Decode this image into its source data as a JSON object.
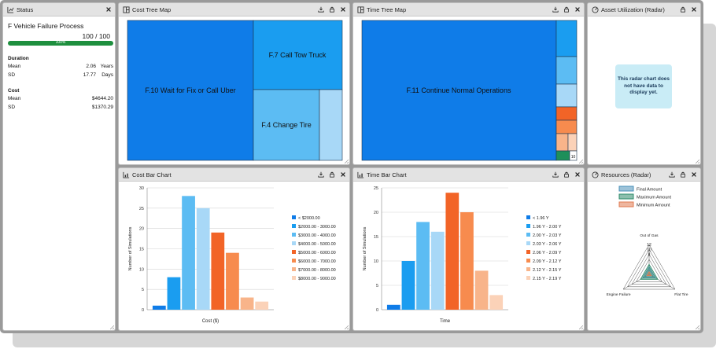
{
  "status": {
    "panel_title": "Status",
    "process_name": "F Vehicle Failure Process",
    "count": "100 / 100",
    "progress": 1.0,
    "progress_label": "100%",
    "duration": {
      "heading": "Duration",
      "mean_label": "Mean",
      "mean_value": "2.06",
      "mean_unit": "Years",
      "sd_label": "SD",
      "sd_value": "17.77",
      "sd_unit": "Days"
    },
    "cost": {
      "heading": "Cost",
      "mean_label": "Mean",
      "mean_value": "$4644.20",
      "sd_label": "SD",
      "sd_value": "$1370.29"
    }
  },
  "cost_tree": {
    "panel_title": "Cost Tree Map",
    "items": [
      {
        "label": "F.10 Wait for Fix or Call Uber",
        "color": "#0f7ce8"
      },
      {
        "label": "F.7 Call Tow Truck",
        "color": "#1a9df0"
      },
      {
        "label": "F.4 Change Tire",
        "color": "#5cbcf3"
      },
      {
        "label": "",
        "color": "#a8d8f7"
      }
    ]
  },
  "time_tree": {
    "panel_title": "Time Tree Map",
    "items": [
      {
        "label": "F.11 Continue Normal Operations",
        "color": "#0f7ce8"
      },
      {
        "label": "",
        "color": "#1a9df0"
      },
      {
        "label": "",
        "color": "#5cbcf3"
      },
      {
        "label": "",
        "color": "#a8d8f7"
      },
      {
        "label": "",
        "color": "#f26427"
      },
      {
        "label": "",
        "color": "#f78b4e"
      },
      {
        "label": "",
        "color": "#f8b48a"
      },
      {
        "label": "",
        "color": "#fbd2b8"
      },
      {
        "label": "",
        "color": "#1e8f5a"
      },
      {
        "label": "10",
        "color": "#ffffff"
      }
    ]
  },
  "asset_radar": {
    "panel_title": "Asset Utilization (Radar)",
    "message": "This radar chart does not have data to display yet."
  },
  "cost_bar": {
    "panel_title": "Cost Bar Chart",
    "chart_data": {
      "type": "bar",
      "categories": [
        "< $2000.00",
        "$2000.00 - 3000.00",
        "$3000.00 - 4000.00",
        "$4000.00 - 5000.00",
        "$5000.00 - 6000.00",
        "$6000.00 - 7000.00",
        "$7000.00 - 8000.00",
        "$8000.00 - 9000.00"
      ],
      "values": [
        1,
        8,
        28,
        25,
        19,
        14,
        3,
        2
      ],
      "colors": [
        "#0f7ce8",
        "#1a9df0",
        "#5cbcf3",
        "#a8d8f7",
        "#f26427",
        "#f78b4e",
        "#f8b48a",
        "#fbd2b8"
      ],
      "xlabel": "Cost ($)",
      "ylabel": "Number of Simulations",
      "ylim": [
        0,
        30
      ],
      "yticks": [
        0,
        5,
        10,
        15,
        20,
        25,
        30
      ],
      "grid": true,
      "legend": "right"
    }
  },
  "time_bar": {
    "panel_title": "Time Bar Chart",
    "chart_data": {
      "type": "bar",
      "categories": [
        "< 1.96 Y",
        "1.96 Y - 2.00 Y",
        "2.00 Y - 2.03 Y",
        "2.03 Y - 2.06 Y",
        "2.06 Y - 2.09 Y",
        "2.09 Y - 2.12 Y",
        "2.12 Y - 2.15 Y",
        "2.15 Y - 2.19 Y"
      ],
      "values": [
        1,
        10,
        18,
        16,
        24,
        20,
        8,
        3
      ],
      "colors": [
        "#0f7ce8",
        "#1a9df0",
        "#5cbcf3",
        "#a8d8f7",
        "#f26427",
        "#f78b4e",
        "#f8b48a",
        "#fbd2b8"
      ],
      "xlabel": "Time",
      "ylabel": "Number of Simulations",
      "ylim": [
        0,
        25
      ],
      "yticks": [
        0,
        5,
        10,
        15,
        20,
        25
      ],
      "grid": true,
      "legend": "right"
    }
  },
  "resources_radar": {
    "panel_title": "Resources (Radar)",
    "chart_data": {
      "type": "radar",
      "axes": [
        "Out of Gas",
        "Flat Tire",
        "Engine Failure"
      ],
      "ticks": [
        0,
        2,
        4,
        6,
        8,
        10,
        12
      ],
      "tick_labels": [
        "2",
        "4",
        "6",
        "8",
        "10",
        "12"
      ],
      "rmax": 12,
      "series": [
        {
          "name": "Final Amount",
          "values": [
            3,
            3,
            3
          ],
          "color": "#4a90b8"
        },
        {
          "name": "Maximum Amount",
          "values": [
            4,
            4,
            4
          ],
          "color": "#2e8b6a"
        },
        {
          "name": "Minimum Amount",
          "values": [
            1,
            1,
            1
          ],
          "color": "#e07a50"
        }
      ]
    }
  }
}
